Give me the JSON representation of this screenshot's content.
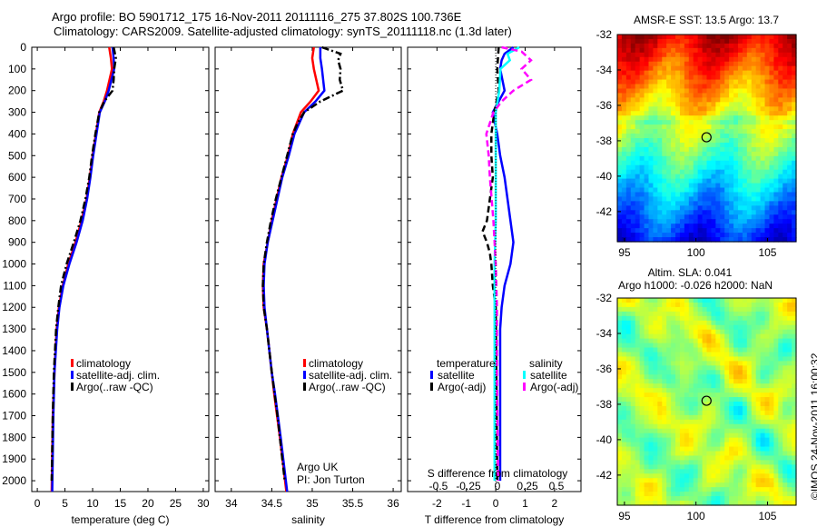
{
  "title_line1": "Argo profile: BO 5901712_175 16-Nov-2011 20111116_275 37.802S 100.736E",
  "title_line2": "Climatology: CARS2009. Satellite-adjusted climatology: synTS_20111118.nc (1.3d later)",
  "colors": {
    "climatology": "#ff0000",
    "satellite": "#0000ff",
    "argo": "#000000",
    "sal_satellite": "#00ffff",
    "sal_argo": "#ff00ff"
  },
  "chart_data": [
    {
      "type": "line",
      "xlabel": "temperature (deg C)",
      "ylabel": "",
      "xlim": [
        -1,
        31
      ],
      "ylim": [
        2050,
        0
      ],
      "xticks": [
        0,
        5,
        10,
        15,
        20,
        25,
        30
      ],
      "yticks": [
        0,
        100,
        200,
        300,
        400,
        500,
        600,
        700,
        800,
        900,
        1000,
        1100,
        1200,
        1300,
        1400,
        1500,
        1600,
        1700,
        1800,
        1900,
        2000
      ],
      "legend": [
        "climatology",
        "satellite-adj. clim.",
        "Argo(..raw -QC)"
      ],
      "legend_placement": "lower-center",
      "series": [
        {
          "name": "climatology",
          "depth": [
            0,
            50,
            100,
            200,
            250,
            300,
            400,
            500,
            600,
            700,
            800,
            900,
            1000,
            1100,
            1200,
            1300,
            1500,
            1700,
            2050
          ],
          "values": [
            13,
            13.3,
            13.5,
            12.6,
            12,
            11.2,
            10.6,
            10,
            9.5,
            8.9,
            8,
            6.9,
            5.6,
            4.6,
            3.9,
            3.5,
            3.1,
            2.8,
            2.6
          ]
        },
        {
          "name": "satellite-adj. clim.",
          "depth": [
            0,
            50,
            100,
            200,
            250,
            300,
            400,
            500,
            600,
            700,
            800,
            900,
            1000,
            1100,
            1200,
            1300,
            1500,
            1700,
            2050
          ],
          "values": [
            13.6,
            13.8,
            13.9,
            12.9,
            12.2,
            11.3,
            10.7,
            10.1,
            9.6,
            9,
            8.2,
            7.1,
            5.8,
            4.7,
            4,
            3.6,
            3.1,
            2.9,
            2.7
          ]
        },
        {
          "name": "Argo(..raw -QC)",
          "depth": [
            0,
            50,
            100,
            150,
            200,
            250,
            300,
            400,
            500,
            600,
            700,
            800,
            900,
            1000,
            1100,
            1200,
            1300,
            1500,
            1700,
            2000
          ],
          "values": [
            13.8,
            14.2,
            13.9,
            13.8,
            13.6,
            12.1,
            11.2,
            10.5,
            9.9,
            9.4,
            8.7,
            7.8,
            6.6,
            5.3,
            4.3,
            3.8,
            3.4,
            3,
            2.8,
            2.6
          ]
        }
      ]
    },
    {
      "type": "line",
      "xlabel": "salinity",
      "xlim": [
        33.8,
        36.1
      ],
      "ylim": [
        2050,
        0
      ],
      "xticks": [
        34,
        34.5,
        35,
        35.5,
        36
      ],
      "legend": [
        "climatology",
        "satellite-adj. clim.",
        "Argo(..raw -QC)"
      ],
      "legend_placement": "lower-right",
      "annotation": [
        "Argo UK",
        "PI: Jon Turton"
      ],
      "series": [
        {
          "name": "climatology",
          "depth": [
            0,
            50,
            100,
            200,
            250,
            300,
            400,
            500,
            600,
            700,
            800,
            900,
            1000,
            1100,
            1200,
            1300,
            1400,
            1500,
            1600,
            1800,
            2050
          ],
          "values": [
            35.02,
            35.0,
            35.02,
            35.08,
            34.98,
            34.86,
            34.76,
            34.7,
            34.62,
            34.56,
            34.5,
            34.45,
            34.4,
            34.39,
            34.4,
            34.44,
            34.47,
            34.5,
            34.53,
            34.6,
            34.68
          ]
        },
        {
          "name": "satellite-adj. clim.",
          "depth": [
            0,
            50,
            100,
            200,
            250,
            300,
            400,
            500,
            600,
            700,
            800,
            900,
            1000,
            1100,
            1200,
            1300,
            1400,
            1500,
            1600,
            1800,
            2050
          ],
          "values": [
            35.1,
            35.1,
            35.12,
            35.15,
            35.04,
            34.9,
            34.78,
            34.71,
            34.63,
            34.57,
            34.51,
            34.45,
            34.41,
            34.4,
            34.41,
            34.44,
            34.47,
            34.5,
            34.54,
            34.61,
            34.69
          ]
        },
        {
          "name": "Argo(..raw -QC)",
          "depth": [
            0,
            30,
            60,
            100,
            150,
            200,
            250,
            300,
            350,
            400,
            500,
            600,
            700,
            800,
            900,
            1000,
            1100,
            1200,
            1300,
            1500,
            1700,
            2000
          ],
          "values": [
            35.12,
            35.35,
            35.32,
            35.35,
            35.34,
            35.38,
            35.1,
            34.9,
            34.82,
            34.76,
            34.69,
            34.62,
            34.55,
            34.49,
            34.44,
            34.4,
            34.39,
            34.4,
            34.44,
            34.5,
            34.57,
            34.66
          ]
        }
      ]
    },
    {
      "type": "line",
      "xlabel": "T difference from climatology",
      "xlim": [
        -3,
        2.9
      ],
      "ylim": [
        2050,
        0
      ],
      "xticks": [
        -2,
        -1,
        0,
        1,
        2
      ],
      "secondary_xlabel": "S difference from climatology",
      "secondary_xticks": [
        "-0.5",
        "-0.25",
        "0",
        "0.25",
        "0.5"
      ],
      "legend_titles": [
        "temperature",
        "salinity"
      ],
      "legend": [
        "satellite",
        "Argo(-adj)",
        "satellite",
        "Argo(-adj)"
      ],
      "series": [
        {
          "name": "temperature satellite",
          "depth": [
            0,
            30,
            60,
            100,
            200,
            250,
            300,
            400,
            500,
            600,
            700,
            800,
            900,
            1000,
            1100,
            1200,
            1300,
            1500,
            2000
          ],
          "values": [
            0.6,
            0.3,
            0.2,
            0.15,
            0.3,
            0.1,
            -0.1,
            0.05,
            0.15,
            0.3,
            0.4,
            0.5,
            0.6,
            0.5,
            0.3,
            0.2,
            0.15,
            0.15,
            0.15
          ]
        },
        {
          "name": "temperature Argo(-adj)",
          "depth": [
            0,
            100,
            200,
            300,
            400,
            500,
            600,
            700,
            800,
            850,
            900,
            950,
            1000,
            1100,
            1150,
            1200,
            1500,
            2000
          ],
          "values": [
            0.1,
            0.05,
            0.1,
            -0.05,
            -0.15,
            -0.15,
            -0.1,
            -0.2,
            -0.3,
            -0.45,
            -0.3,
            -0.2,
            -0.15,
            -0.1,
            -0.05,
            0,
            0.02,
            0.05
          ]
        },
        {
          "name": "salinity satellite",
          "depth": [
            0,
            30,
            60,
            100,
            200,
            300,
            400,
            600,
            800,
            1000,
            1200,
            1500,
            2000
          ],
          "values": [
            0.2,
            0.1,
            0.12,
            0.04,
            0.03,
            0.0,
            0.0,
            0.0,
            0.0,
            -0.01,
            -0.01,
            -0.01,
            -0.01
          ]
        },
        {
          "name": "salinity Argo(-adj)",
          "depth": [
            0,
            20,
            60,
            100,
            150,
            200,
            250,
            300,
            400,
            500,
            600,
            800,
            1000,
            1200,
            1500,
            2000
          ],
          "values": [
            0.05,
            0.22,
            0.3,
            0.22,
            0.3,
            0.15,
            0.05,
            -0.02,
            -0.08,
            -0.06,
            -0.05,
            -0.02,
            0,
            0.01,
            0.01,
            0.02
          ]
        }
      ]
    },
    {
      "type": "heatmap",
      "title": "AMSR-E SST: 13.5 Argo: 13.7",
      "xlim": [
        94.5,
        107
      ],
      "ylim": [
        -43.7,
        -32
      ],
      "xticks": [
        95,
        100,
        105
      ],
      "yticks": [
        -32,
        -34,
        -36,
        -38,
        -40,
        -42
      ],
      "marker": {
        "lon": 100.736,
        "lat": -37.802
      }
    },
    {
      "type": "heatmap",
      "title_line1": "Altim. SLA: 0.041",
      "title_line2": "Argo h1000: -0.026 h2000: NaN",
      "xlim": [
        94.5,
        107
      ],
      "ylim": [
        -43.7,
        -32
      ],
      "xticks": [
        95,
        100,
        105
      ],
      "yticks": [
        -32,
        -34,
        -36,
        -38,
        -40,
        -42
      ],
      "marker": {
        "lon": 100.736,
        "lat": -37.802
      }
    }
  ],
  "credit": "©IMOS 24-Nov-2011 16:00:32"
}
